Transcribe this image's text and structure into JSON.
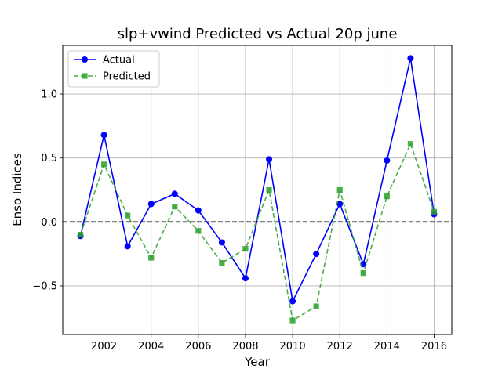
{
  "chart_data": {
    "type": "line",
    "title": "slp+vwind Predicted vs Actual 20p june",
    "xlabel": "Year",
    "ylabel": "Enso Indices",
    "xlim": [
      2000.25,
      2016.75
    ],
    "ylim": [
      -0.88,
      1.38
    ],
    "x_ticks": [
      2002,
      2004,
      2006,
      2008,
      2010,
      2012,
      2014,
      2016
    ],
    "x_tick_labels": [
      "2002",
      "2004",
      "2006",
      "2008",
      "2010",
      "2012",
      "2014",
      "2016"
    ],
    "y_ticks": [
      -0.5,
      0.0,
      0.5,
      1.0
    ],
    "y_tick_labels": [
      "−0.5",
      "0.0",
      "0.5",
      "1.0"
    ],
    "grid": true,
    "legend_position": "top-left",
    "reference_line": {
      "y": 0,
      "style": "dashed",
      "color": "#000000"
    },
    "x": [
      2001,
      2002,
      2003,
      2004,
      2005,
      2006,
      2007,
      2008,
      2009,
      2010,
      2011,
      2012,
      2013,
      2014,
      2015,
      2016
    ],
    "series": [
      {
        "name": "Actual",
        "color": "#0000ff",
        "line_style": "solid",
        "marker": "circle",
        "values": [
          -0.11,
          0.68,
          -0.19,
          0.14,
          0.22,
          0.09,
          -0.16,
          -0.44,
          0.49,
          -0.62,
          -0.25,
          0.14,
          -0.33,
          0.48,
          1.28,
          0.06
        ]
      },
      {
        "name": "Predicted",
        "color": "#2ca02c",
        "line_style": "dashed",
        "marker": "square",
        "values": [
          -0.1,
          0.45,
          0.05,
          -0.28,
          0.12,
          -0.07,
          -0.32,
          -0.21,
          0.25,
          -0.77,
          -0.66,
          0.25,
          -0.4,
          0.2,
          0.61,
          0.08
        ]
      }
    ]
  }
}
